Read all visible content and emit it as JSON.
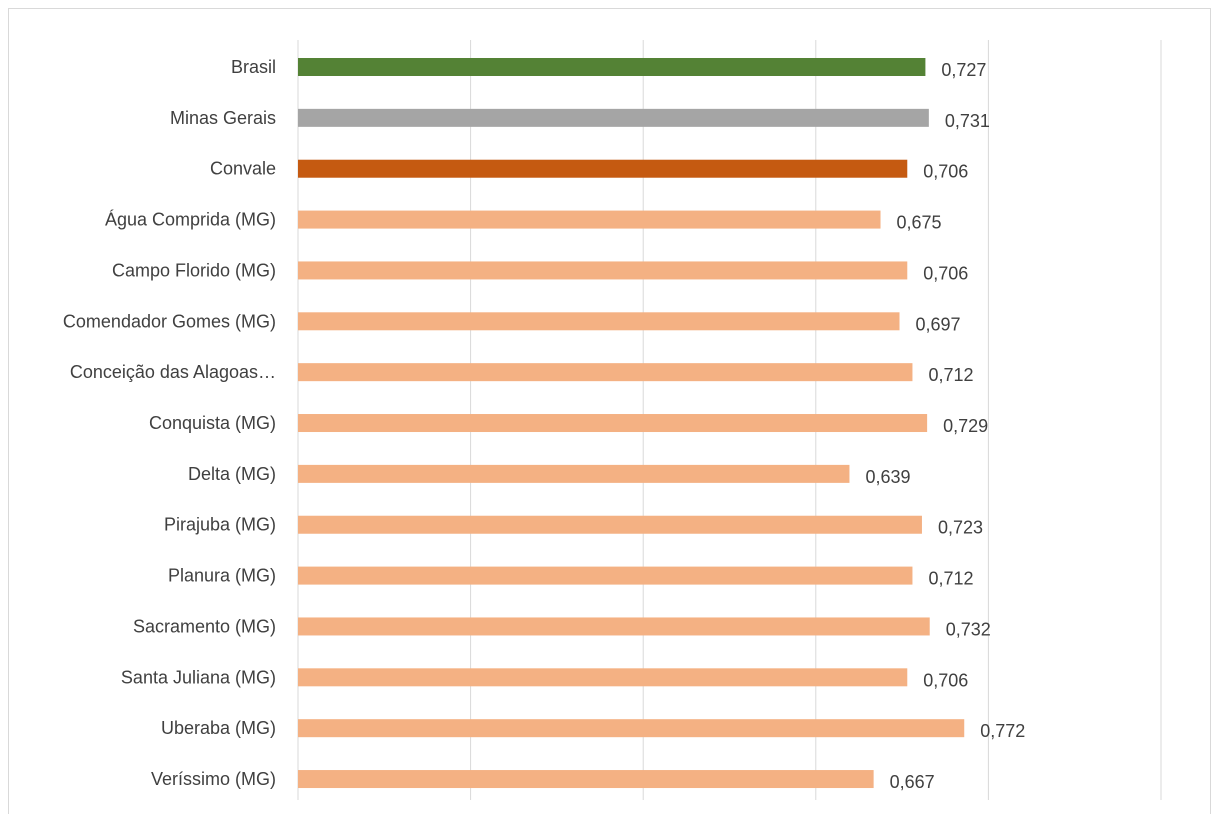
{
  "chart_data": {
    "type": "bar",
    "orientation": "horizontal",
    "categories": [
      "Brasil",
      "Minas Gerais",
      "Convale",
      "Água Comprida (MG)",
      "Campo Florido (MG)",
      "Comendador Gomes (MG)",
      "Conceição das Alagoas…",
      "Conquista (MG)",
      "Delta (MG)",
      "Pirajuba (MG)",
      "Planura (MG)",
      "Sacramento (MG)",
      "Santa Juliana (MG)",
      "Uberaba (MG)",
      "Veríssimo (MG)"
    ],
    "values": [
      0.727,
      0.731,
      0.706,
      0.675,
      0.706,
      0.697,
      0.712,
      0.729,
      0.639,
      0.723,
      0.712,
      0.732,
      0.706,
      0.772,
      0.667
    ],
    "value_labels": [
      "0,727",
      "0,731",
      "0,706",
      "0,675",
      "0,706",
      "0,697",
      "0,712",
      "0,729",
      "0,639",
      "0,723",
      "0,712",
      "0,732",
      "0,706",
      "0,772",
      "0,667"
    ],
    "bar_colors": [
      "#548235",
      "#a5a5a5",
      "#c55a11",
      "#f4b183",
      "#f4b183",
      "#f4b183",
      "#f4b183",
      "#f4b183",
      "#f4b183",
      "#f4b183",
      "#f4b183",
      "#f4b183",
      "#f4b183",
      "#f4b183",
      "#f4b183"
    ],
    "xlim": [
      0,
      1
    ],
    "gridlines": [
      0,
      0.2,
      0.4,
      0.6,
      0.8,
      1.0
    ],
    "grid": true,
    "legend": false,
    "title": "",
    "xlabel": "",
    "ylabel": ""
  }
}
